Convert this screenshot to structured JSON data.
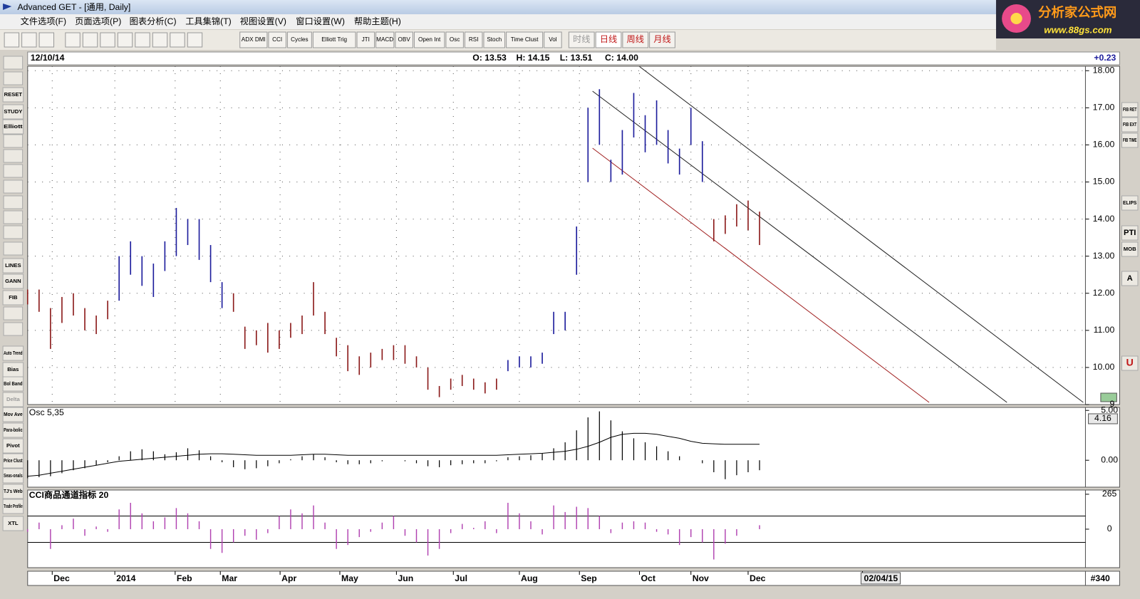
{
  "window": {
    "title": "Advanced GET - [通用, Daily]"
  },
  "menu": [
    "文件选项(F)",
    "页面选项(P)",
    "图表分析(C)",
    "工具集锦(T)",
    "视图设置(V)",
    "窗口设置(W)",
    "帮助主题(H)"
  ],
  "logo": {
    "name": "分析家公式网",
    "url": "www.88gs.com"
  },
  "toolbar": {
    "studies": [
      "ADX DMI",
      "CCI",
      "Cycles",
      "Elliott Trig",
      "JTI",
      "MACD",
      "OBV",
      "Open Int",
      "Osc",
      "RSI",
      "Stoch",
      "Time Clust",
      "Vol"
    ],
    "periods": [
      "时线",
      "日线",
      "周线",
      "月线"
    ]
  },
  "left_toolbar": [
    "RESET",
    "STUDY",
    "Elliott",
    "LINES",
    "GANN",
    "FIB",
    "Auto Trend",
    "Bias",
    "Bol Band",
    "Delta",
    "Mov Ave",
    "Para-bolic",
    "Pivot",
    "Price Clust",
    "Seas-onals",
    "TJ's Web",
    "Trade Profile",
    "XTL"
  ],
  "right_toolbar": [
    "FIB RET",
    "FIB EXT",
    "FIB TIME",
    "ELIPS",
    "PTI",
    "MOB",
    "A",
    "U"
  ],
  "info": {
    "date": "12/10/14",
    "open": "O: 13.53",
    "high": "H: 14.15",
    "low": "L: 13.51",
    "close": "C: 14.00",
    "change": "+0.23"
  },
  "chart_data": [
    {
      "type": "price-bars",
      "x": [
        0,
        4,
        8,
        12,
        16,
        20,
        24,
        28,
        32,
        36,
        40,
        44,
        48,
        52,
        56,
        60,
        64,
        68,
        72,
        76,
        80,
        84,
        88,
        92,
        96,
        100,
        104,
        108,
        112,
        116,
        120,
        124,
        128,
        132,
        136,
        140,
        144,
        148,
        152,
        156,
        160,
        164,
        168,
        172,
        176,
        180,
        184,
        188,
        192,
        196,
        200,
        204,
        208,
        212,
        216,
        220,
        224,
        228,
        232,
        236,
        240,
        244,
        248,
        252,
        256
      ],
      "low": [
        11.7,
        11.5,
        10.5,
        11.2,
        11.4,
        11.0,
        10.9,
        11.3,
        11.8,
        12.5,
        12.2,
        11.9,
        12.6,
        13.0,
        13.3,
        12.9,
        12.3,
        11.6,
        11.5,
        10.5,
        10.6,
        10.4,
        10.5,
        10.8,
        10.9,
        11.4,
        10.9,
        10.3,
        9.9,
        9.8,
        10.0,
        10.2,
        10.2,
        10.1,
        10.0,
        9.4,
        9.2,
        9.4,
        9.5,
        9.4,
        9.3,
        9.4,
        9.9,
        10.0,
        10.0,
        10.1,
        10.9,
        11.0,
        12.5,
        15.0,
        16.0,
        15.0,
        15.2,
        16.2,
        15.8,
        16.0,
        15.5,
        15.2,
        16.0,
        15.0,
        13.4,
        13.6,
        13.8,
        13.7,
        13.3
      ],
      "high": [
        12.1,
        12.1,
        11.6,
        11.9,
        12.0,
        11.6,
        11.4,
        11.8,
        13.0,
        13.4,
        13.0,
        12.8,
        13.4,
        14.3,
        14.0,
        14.0,
        13.3,
        12.3,
        12.0,
        11.1,
        11.0,
        11.2,
        11.0,
        11.2,
        11.4,
        12.3,
        11.5,
        10.8,
        10.6,
        10.3,
        10.4,
        10.5,
        10.6,
        10.6,
        10.3,
        10.0,
        9.5,
        9.7,
        9.8,
        9.7,
        9.6,
        9.7,
        10.2,
        10.3,
        10.3,
        10.4,
        11.5,
        11.5,
        13.8,
        17.0,
        17.5,
        15.6,
        16.4,
        17.4,
        16.8,
        17.2,
        16.4,
        15.9,
        17.0,
        16.1,
        14.0,
        14.1,
        14.4,
        14.5,
        14.2
      ],
      "colors": [
        "#8b1a1a",
        "#8b1a1a",
        "#8b1a1a",
        "#8b1a1a",
        "#8b1a1a",
        "#8b1a1a",
        "#8b1a1a",
        "#8b1a1a",
        "#1c1c9c",
        "#1c1c9c",
        "#1c1c9c",
        "#1c1c9c",
        "#1c1c9c",
        "#1c1c9c",
        "#1c1c9c",
        "#1c1c9c",
        "#1c1c9c",
        "#1c1c9c",
        "#8b1a1a",
        "#8b1a1a",
        "#8b1a1a",
        "#8b1a1a",
        "#8b1a1a",
        "#8b1a1a",
        "#8b1a1a",
        "#8b1a1a",
        "#8b1a1a",
        "#8b1a1a",
        "#8b1a1a",
        "#8b1a1a",
        "#8b1a1a",
        "#8b1a1a",
        "#8b1a1a",
        "#8b1a1a",
        "#8b1a1a",
        "#8b1a1a",
        "#8b1a1a",
        "#8b1a1a",
        "#8b1a1a",
        "#8b1a1a",
        "#8b1a1a",
        "#8b1a1a",
        "#1c1c9c",
        "#1c1c9c",
        "#1c1c9c",
        "#1c1c9c",
        "#1c1c9c",
        "#1c1c9c",
        "#1c1c9c",
        "#1c1c9c",
        "#1c1c9c",
        "#1c1c9c",
        "#1c1c9c",
        "#1c1c9c",
        "#1c1c9c",
        "#1c1c9c",
        "#1c1c9c",
        "#1c1c9c",
        "#1c1c9c",
        "#1c1c9c",
        "#8b1a1a",
        "#8b1a1a",
        "#8b1a1a",
        "#8b1a1a",
        "#8b1a1a"
      ],
      "xlim": [
        0,
        370
      ],
      "ylim": [
        9,
        18.12
      ],
      "yticks": [
        9,
        {
          "value": 10,
          "label": "10.00"
        },
        {
          "value": 11,
          "label": "11.00"
        },
        {
          "value": 12,
          "label": "12.00"
        },
        {
          "value": 13,
          "label": "13.00"
        },
        {
          "value": 14,
          "label": "14.00"
        },
        {
          "value": 15,
          "label": "15.00"
        },
        {
          "value": 16,
          "label": "16.00"
        },
        {
          "value": 17,
          "label": "17.00"
        },
        {
          "value": 18,
          "label": "18.00"
        }
      ],
      "xticks": [
        {
          "value": 8.6,
          "label": "Dec"
        },
        {
          "value": 30.5,
          "label": "2014"
        },
        {
          "value": 51.6,
          "label": "Feb"
        },
        {
          "value": 67.4,
          "label": "Mar"
        },
        {
          "value": 88.3,
          "label": "Apr"
        },
        {
          "value": 109.2,
          "label": "May"
        },
        {
          "value": 129,
          "label": "Jun"
        },
        {
          "value": 148.9,
          "label": "Jul"
        },
        {
          "value": 172,
          "label": "Aug"
        },
        {
          "value": 193,
          "label": "Sep"
        },
        {
          "value": 214,
          "label": "Oct"
        },
        {
          "value": 232,
          "label": "Nov"
        },
        {
          "value": 252,
          "label": "Dec"
        },
        {
          "value": 292,
          "label": "02/04/15"
        }
      ],
      "bar_count": "#340",
      "grid": true
    },
    {
      "type": "oscillator",
      "title": "Osc 5,35",
      "x": [
        0,
        4,
        8,
        12,
        16,
        20,
        24,
        28,
        32,
        36,
        40,
        44,
        48,
        52,
        56,
        60,
        64,
        68,
        72,
        76,
        80,
        84,
        88,
        92,
        96,
        100,
        104,
        108,
        112,
        116,
        120,
        124,
        128,
        132,
        136,
        140,
        144,
        148,
        152,
        156,
        160,
        164,
        168,
        172,
        176,
        180,
        184,
        188,
        192,
        196,
        200,
        204,
        208,
        212,
        216,
        220,
        224,
        228,
        232,
        236,
        240,
        244,
        248,
        252,
        256
      ],
      "series": [
        {
          "color": "#000000",
          "values": [
            -1.8,
            -1.7,
            -1.6,
            -1.3,
            -1.0,
            -0.8,
            -0.5,
            -0.2,
            0.4,
            0.9,
            1.1,
            0.9,
            0.6,
            0.8,
            1.2,
            1.0,
            0.4,
            -0.2,
            -0.7,
            -0.9,
            -0.8,
            -0.6,
            -0.3,
            0.1,
            0.4,
            0.6,
            0.3,
            -0.2,
            -0.4,
            -0.4,
            -0.3,
            -0.1,
            0.0,
            -0.1,
            -0.3,
            -0.6,
            -0.7,
            -0.5,
            -0.4,
            -0.3,
            -0.3,
            -0.1,
            0.3,
            0.4,
            0.5,
            0.7,
            1.2,
            1.8,
            3.0,
            4.3,
            4.9,
            4.0,
            2.9,
            2.2,
            1.8,
            1.4,
            0.9,
            0.4,
            0.0,
            -0.3,
            -1.2,
            -1.9,
            -1.5,
            -1.2,
            -1.0
          ]
        },
        {
          "color": "#000000",
          "values": [
            -1.6,
            -1.5,
            -1.3,
            -1.1,
            -0.9,
            -0.7,
            -0.5,
            -0.3,
            -0.1,
            0.0,
            0.1,
            0.2,
            0.3,
            0.4,
            0.5,
            0.6,
            0.65,
            0.65,
            0.6,
            0.55,
            0.5,
            0.5,
            0.5,
            0.5,
            0.55,
            0.6,
            0.6,
            0.55,
            0.5,
            0.5,
            0.5,
            0.5,
            0.5,
            0.5,
            0.5,
            0.5,
            0.5,
            0.5,
            0.5,
            0.5,
            0.5,
            0.5,
            0.55,
            0.6,
            0.65,
            0.7,
            0.8,
            0.9,
            1.1,
            1.4,
            1.8,
            2.3,
            2.6,
            2.7,
            2.7,
            2.6,
            2.4,
            2.2,
            1.9,
            1.7,
            1.65,
            1.6,
            1.6,
            1.6,
            1.6
          ]
        }
      ],
      "xlim": [
        0,
        370
      ],
      "ylim": [
        -2.7,
        5.3
      ],
      "yticks": [
        {
          "value": 5,
          "label": "5.00"
        },
        {
          "value": 0,
          "label": "0.00"
        }
      ],
      "marker": {
        "value": 4.16,
        "label": "4.16"
      }
    },
    {
      "type": "cci",
      "title": "CCI商品通道指标 20",
      "x": [
        0,
        4,
        8,
        12,
        16,
        20,
        24,
        28,
        32,
        36,
        40,
        44,
        48,
        52,
        56,
        60,
        64,
        68,
        72,
        76,
        80,
        84,
        88,
        92,
        96,
        100,
        104,
        108,
        112,
        116,
        120,
        124,
        128,
        132,
        136,
        140,
        144,
        148,
        152,
        156,
        160,
        164,
        168,
        172,
        176,
        180,
        184,
        188,
        192,
        196,
        200,
        204,
        208,
        212,
        216,
        220,
        224,
        228,
        232,
        236,
        240,
        244,
        248,
        252,
        256
      ],
      "values": [
        -20,
        50,
        -150,
        30,
        80,
        -50,
        20,
        -20,
        150,
        200,
        120,
        60,
        90,
        160,
        120,
        60,
        -150,
        -180,
        -100,
        -50,
        -80,
        -30,
        100,
        150,
        120,
        180,
        50,
        -150,
        -120,
        -60,
        -20,
        50,
        100,
        -50,
        -100,
        -200,
        -150,
        -30,
        40,
        10,
        60,
        -30,
        200,
        120,
        60,
        -40,
        180,
        130,
        170,
        160,
        100,
        -30,
        50,
        60,
        50,
        -20,
        -40,
        -120,
        -60,
        -100,
        -230,
        -110,
        -50,
        0,
        30
      ],
      "color": "#b040b0",
      "xlim": [
        0,
        370
      ],
      "ylim": [
        -292,
        297
      ],
      "yticks": [
        265,
        0
      ],
      "levels": [
        100,
        -100
      ]
    }
  ]
}
